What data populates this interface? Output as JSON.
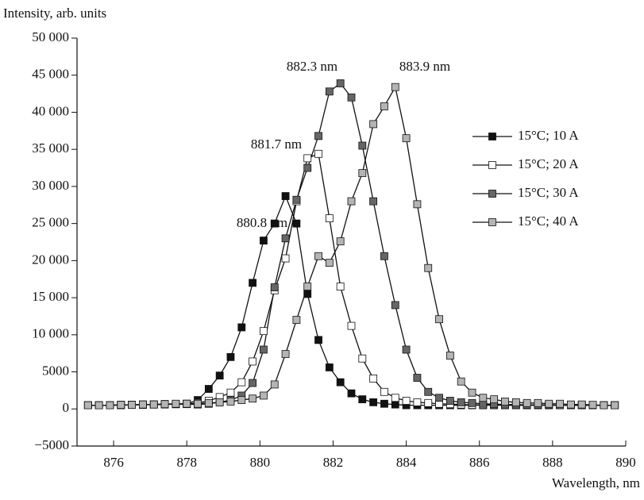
{
  "chart_data": {
    "type": "line",
    "y_label": "Intensity, arb. units",
    "x_label": "Wavelength, nm",
    "annotations": [
      "880.8 nm",
      "881.7 nm",
      "882.3 nm",
      "883.9 nm"
    ],
    "x": [
      875.3,
      875.6,
      875.9,
      876.2,
      876.5,
      876.8,
      877.1,
      877.4,
      877.7,
      878.0,
      878.3,
      878.6,
      878.9,
      879.2,
      879.5,
      879.8,
      880.1,
      880.4,
      880.7,
      881.0,
      881.3,
      881.6,
      881.9,
      882.2,
      882.5,
      882.8,
      883.1,
      883.4,
      883.7,
      884.0,
      884.3,
      884.6,
      884.9,
      885.2,
      885.5,
      885.8,
      886.1,
      886.4,
      886.7,
      887.0,
      887.3,
      887.6,
      887.9,
      888.2,
      888.5,
      888.8,
      889.1,
      889.4,
      889.7
    ],
    "series": [
      {
        "name": "15°C; 10 A",
        "color": "#111111",
        "values": [
          500,
          500,
          500,
          500,
          550,
          550,
          600,
          600,
          650,
          700,
          1200,
          2700,
          4500,
          7000,
          11000,
          17000,
          22700,
          25000,
          28700,
          25000,
          15500,
          9300,
          5600,
          3600,
          2100,
          1300,
          900,
          700,
          600,
          500,
          500,
          500,
          500,
          500,
          500,
          500,
          500,
          500,
          500,
          500,
          500,
          500,
          500,
          500,
          500,
          500,
          500,
          500,
          500
        ]
      },
      {
        "name": "15°C; 20 A",
        "color": "#ffffff",
        "values": [
          500,
          500,
          500,
          550,
          550,
          600,
          600,
          650,
          650,
          700,
          800,
          1100,
          1600,
          2200,
          3600,
          6400,
          10500,
          16000,
          20300,
          28000,
          33800,
          34400,
          25700,
          16500,
          11200,
          6800,
          4100,
          2300,
          1500,
          1100,
          900,
          800,
          700,
          650,
          600,
          550,
          550,
          550,
          500,
          500,
          500,
          500,
          500,
          500,
          500,
          500,
          500,
          500,
          500
        ]
      },
      {
        "name": "15°C; 30 A",
        "color": "#666666",
        "values": [
          500,
          500,
          500,
          550,
          550,
          600,
          600,
          650,
          650,
          650,
          600,
          700,
          900,
          1200,
          1800,
          3500,
          8000,
          16400,
          23000,
          28200,
          32500,
          36800,
          42800,
          43900,
          42000,
          35500,
          28000,
          20600,
          14000,
          8000,
          4200,
          2300,
          1500,
          1100,
          900,
          800,
          700,
          650,
          600,
          600,
          550,
          550,
          550,
          500,
          500,
          500,
          500,
          500,
          500
        ]
      },
      {
        "name": "15°C; 40 A",
        "color": "#b4b4b4",
        "values": [
          500,
          500,
          500,
          550,
          550,
          600,
          600,
          650,
          700,
          700,
          700,
          800,
          900,
          1000,
          1200,
          1400,
          1800,
          3300,
          7400,
          12000,
          16500,
          20600,
          19700,
          22600,
          28000,
          31800,
          38400,
          40800,
          43400,
          36500,
          27600,
          19000,
          12100,
          7200,
          3700,
          2200,
          1500,
          1300,
          1000,
          900,
          800,
          800,
          700,
          700,
          600,
          600,
          550,
          500,
          500
        ]
      }
    ],
    "xlim": [
      875,
      890
    ],
    "xticks": [
      876,
      878,
      880,
      882,
      884,
      886,
      888,
      890
    ],
    "ylim": [
      -5000,
      50000
    ],
    "yticks": [
      {
        "value": -5000,
        "label": "−5000"
      },
      0,
      5000,
      {
        "value": 10000,
        "label": "10 000"
      },
      {
        "value": 15000,
        "label": "15 000"
      },
      {
        "value": 20000,
        "label": "20 000"
      },
      {
        "value": 25000,
        "label": "25 000"
      },
      {
        "value": 30000,
        "label": "30 000"
      },
      {
        "value": 35000,
        "label": "35 000"
      },
      {
        "value": 40000,
        "label": "40 000"
      },
      {
        "value": 45000,
        "label": "45 000"
      },
      {
        "value": 50000,
        "label": "50 000"
      }
    ],
    "grid": false
  }
}
